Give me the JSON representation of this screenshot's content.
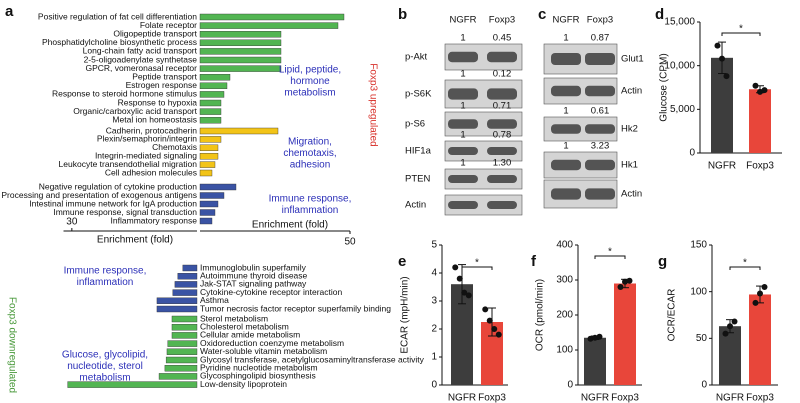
{
  "chart_data": [
    {
      "type": "barh-up",
      "panel": "a",
      "side_label": "Foxp3 upregulated",
      "xlabel": "Enrichment (fold)",
      "xlim": [
        0,
        50
      ],
      "xticks": [
        50
      ],
      "groups": [
        {
          "label": [
            "Lipid, peptide,",
            "hormone",
            "metabolism"
          ],
          "color": "#52b552",
          "categories": [
            "Positive regulation of fat cell differentiation",
            "Folate receptor",
            "Oligopeptide transport",
            "Phosphatidylcholine biosynthetic process",
            "Long-chain fatty acid transport",
            "2-5-oligoadenylate synthetase",
            "GPCR, vomeronasal receptor",
            "Peptide transport",
            "Estrogen response",
            "Response to steroid hormone stimulus",
            "Response to hypoxia",
            "Organic/carboxylic acid transport",
            "Metal ion homeostasis"
          ],
          "values": [
            48,
            46,
            27,
            27,
            27,
            27,
            27,
            10,
            9,
            8,
            7,
            7,
            7
          ]
        },
        {
          "label": [
            "Migration,",
            "chemotaxis,",
            "adhesion"
          ],
          "color": "#f2c418",
          "categories": [
            "Cadherin, protocadherin",
            "Plexin/semaphorin/integrin",
            "Chemotaxis",
            "Integrin-mediated signaling",
            "Leukocyte transendothelial migration",
            "Cell adhesion molecules"
          ],
          "values": [
            26,
            7,
            6,
            6,
            5,
            4
          ]
        },
        {
          "label": [
            "Immune response,",
            "inflammation"
          ],
          "color": "#3a53a4",
          "categories": [
            "Negative regulation of cytokine production",
            "Processing and presentation of exogenous antigens",
            "Intestinal immune network for IgA production",
            "Immune response, signal transduction",
            "Inflammatory response"
          ],
          "values": [
            12,
            8,
            6,
            5,
            4
          ]
        }
      ]
    },
    {
      "type": "barh-down",
      "panel": null,
      "side_label": "Foxp3 downregulated",
      "xlabel": "Enrichment (fold)",
      "xlim": [
        0,
        32
      ],
      "xticks": [
        30
      ],
      "groups": [
        {
          "label": [
            "Immune response,",
            "inflammation"
          ],
          "color": "#3a53a4",
          "categories": [
            "Immunoglobulin superfamily",
            "Autoimmune thyroid disease",
            "Jak-STAT signaling pathway",
            "Cytokine-cytokine receptor interaction",
            "Asthma",
            "Tumor necrosis factor receptor superfamily binding"
          ],
          "values": [
            3.4,
            4.6,
            5.3,
            5.8,
            9.6,
            9.6
          ]
        },
        {
          "label": [
            "Glucose, glycolipid,",
            "nucleotide, sterol",
            "metabolism"
          ],
          "color": "#52b552",
          "categories": [
            "Sterol metabolism",
            "Cholesterol metabolism",
            "Cellular amide metabolism",
            "Oxidoreduction coenzyme metabolism",
            "Water-soluble vitamin metabolism",
            "Glycosyl transferase, acetylglucosaminyltransferase activity",
            "Pyridine nucleotide metabolism",
            "Glycosphingolipid biosynthesis",
            "Low-density lipoprotein"
          ],
          "values": [
            6,
            6,
            6,
            7,
            7.2,
            7.4,
            7.7,
            9.1,
            31
          ]
        }
      ]
    },
    {
      "type": "bar",
      "panel": "d",
      "ylabel": "Glucose (CPM)",
      "categories": [
        "NGFR",
        "Foxp3"
      ],
      "colors": [
        "#3d3d3d",
        "#e8463a"
      ],
      "values": [
        10900,
        7300
      ],
      "errors": [
        1800,
        400
      ],
      "points": [
        [
          12300,
          10800,
          8800
        ],
        [
          7700,
          7000,
          7200
        ]
      ],
      "ylim": [
        0,
        15000
      ],
      "yticks": [
        0,
        {
          "value": 5000,
          "label": "5,000"
        },
        {
          "value": 10000,
          "label": "10,000"
        },
        {
          "value": 15000,
          "label": "15,000"
        }
      ],
      "annotation": "*"
    },
    {
      "type": "bar",
      "panel": "e",
      "ylabel": "ECAR (mpH/min)",
      "categories": [
        "NGFR",
        "Foxp3"
      ],
      "colors": [
        "#3d3d3d",
        "#e8463a"
      ],
      "values": [
        3.6,
        2.25
      ],
      "errors": [
        0.7,
        0.5
      ],
      "points": [
        [
          4.2,
          3.8,
          3.3,
          3.2
        ],
        [
          2.7,
          2.3,
          2.0,
          1.8
        ]
      ],
      "ylim": [
        0,
        5
      ],
      "yticks": [
        0,
        1,
        2,
        3,
        4,
        5
      ],
      "annotation": "*"
    },
    {
      "type": "bar",
      "panel": "f",
      "ylabel": "OCR (pmol/min)",
      "categories": [
        "NGFR",
        "Foxp3"
      ],
      "colors": [
        "#3d3d3d",
        "#e8463a"
      ],
      "values": [
        135,
        290
      ],
      "errors": [
        5,
        12
      ],
      "points": [
        [
          132,
          135,
          138
        ],
        [
          280,
          295,
          298
        ]
      ],
      "ylim": [
        0,
        400
      ],
      "yticks": [
        0,
        100,
        200,
        300,
        400
      ],
      "annotation": "*"
    },
    {
      "type": "bar",
      "panel": "g",
      "ylabel": "OCR/ECAR",
      "categories": [
        "NGFR",
        "Foxp3"
      ],
      "colors": [
        "#3d3d3d",
        "#e8463a"
      ],
      "values": [
        63,
        97
      ],
      "errors": [
        7,
        9
      ],
      "points": [
        [
          55,
          63,
          68
        ],
        [
          88,
          98,
          105
        ]
      ],
      "ylim": [
        0,
        150
      ],
      "yticks": [
        0,
        50,
        100,
        150
      ],
      "annotation": "*"
    }
  ],
  "blots": [
    {
      "panel": "b",
      "columns": [
        "NGFR",
        "Foxp3"
      ],
      "rows": [
        {
          "label": "p-Akt",
          "quant": [
            "1",
            "0.45"
          ]
        },
        {
          "label": "p-S6K",
          "quant": [
            "1",
            "0.12"
          ]
        },
        {
          "label": "p-S6",
          "quant": [
            "1",
            "0.71"
          ]
        },
        {
          "label": "HIF1a",
          "quant": [
            "1",
            "0.78"
          ]
        },
        {
          "label": "PTEN",
          "quant": [
            "1",
            "1.30"
          ]
        },
        {
          "label": "Actin"
        }
      ]
    },
    {
      "panel": "c",
      "columns": [
        "NGFR",
        "Foxp3"
      ],
      "rows": [
        {
          "label": "Glut1",
          "quant": [
            "1",
            "0.87"
          ]
        },
        {
          "label": "Actin"
        },
        {
          "label": "Hk2",
          "quant": [
            "1",
            "0.61"
          ]
        },
        {
          "label": "Hk1",
          "quant": [
            "1",
            "3.23"
          ]
        },
        {
          "label": "Actin"
        }
      ]
    }
  ]
}
